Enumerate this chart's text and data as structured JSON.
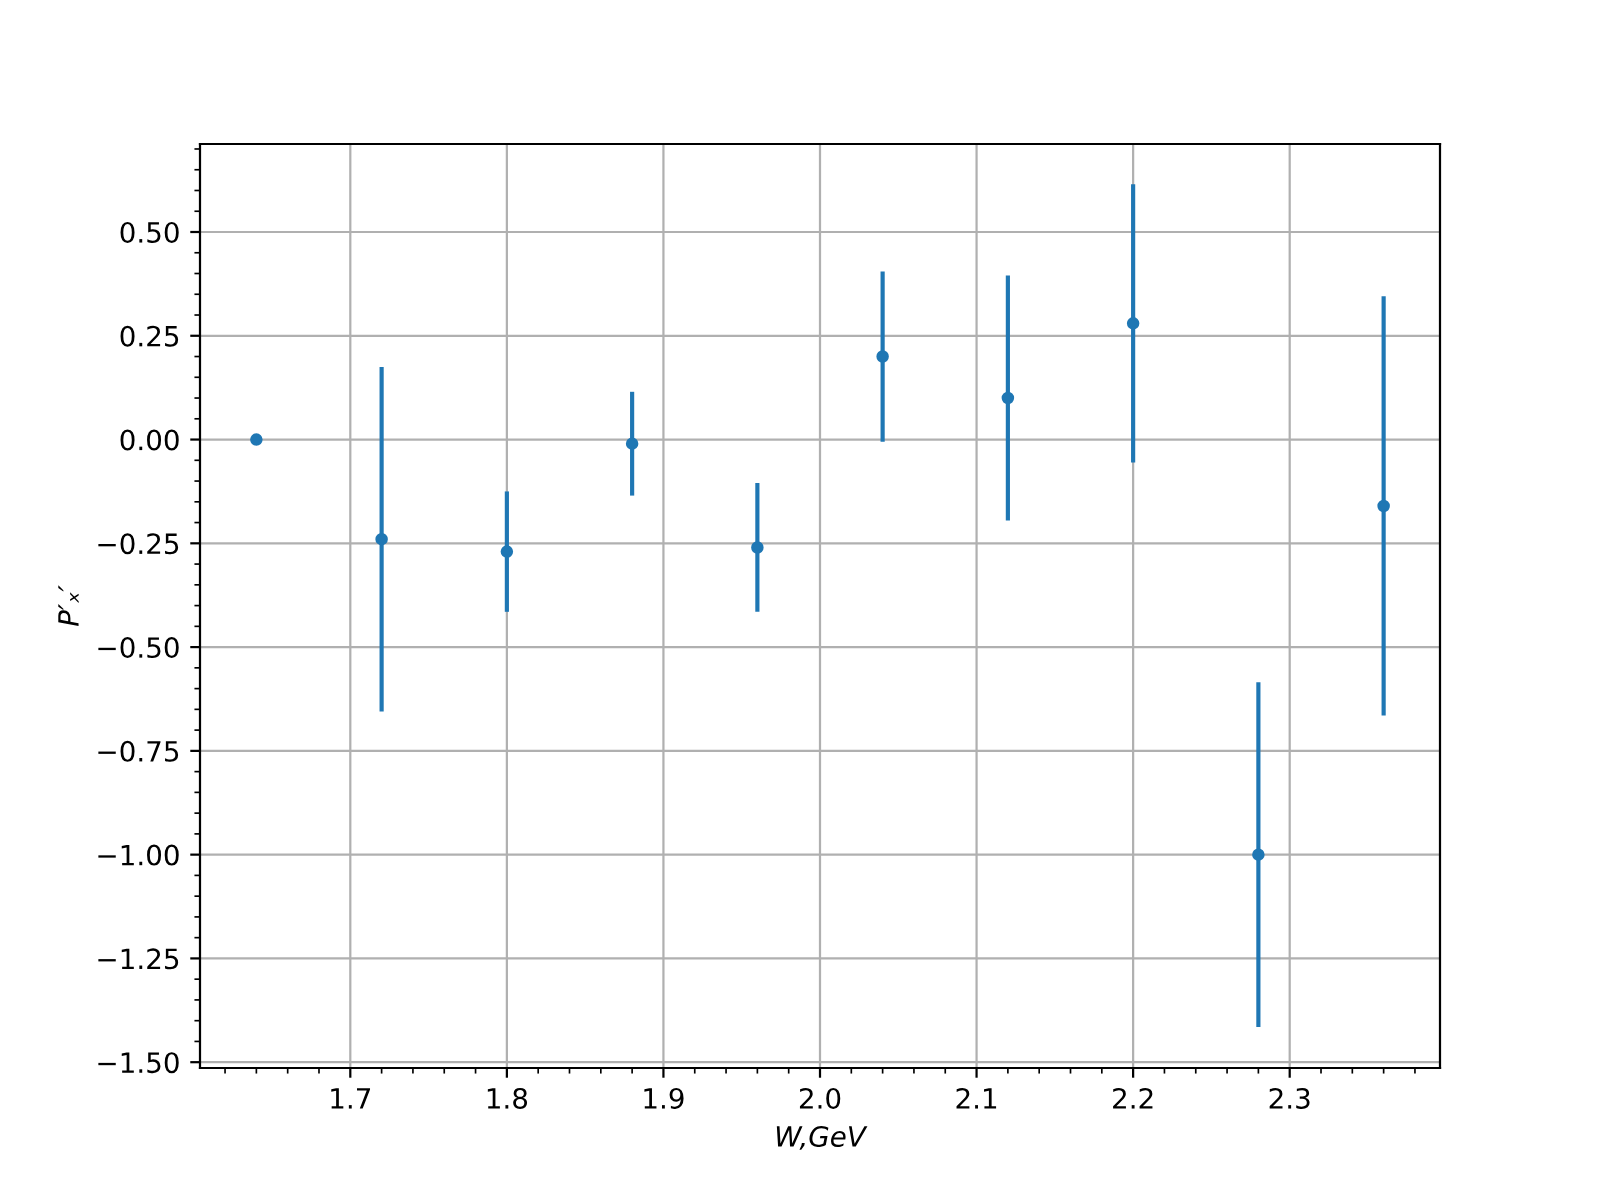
{
  "chart_data": {
    "type": "scatter",
    "xlabel": "W,GeV",
    "ylabel": "P′ₓ′",
    "x": [
      1.64,
      1.72,
      1.8,
      1.88,
      1.96,
      2.04,
      2.12,
      2.2,
      2.28,
      2.36
    ],
    "series": [
      {
        "color": "#1f77b4",
        "values": [
          0.0,
          -0.24,
          -0.27,
          -0.01,
          -0.26,
          0.2,
          0.1,
          0.28,
          -1.0,
          -0.16
        ],
        "errors": [
          null,
          0.41,
          0.14,
          0.12,
          0.15,
          0.2,
          0.29,
          0.33,
          0.41,
          0.5
        ]
      }
    ],
    "marker": "circle",
    "xlim": [
      1.604,
      2.396
    ],
    "xticks": [
      1.7,
      1.8,
      1.9,
      {
        "value": 2.0,
        "label": "2.0"
      },
      2.1,
      2.2,
      2.3
    ],
    "ylim": [
      -1.514,
      0.712
    ],
    "yticks": [
      {
        "value": -1.5,
        "label": "−1.50"
      },
      {
        "value": -1.25,
        "label": "−1.25"
      },
      {
        "value": -1.0,
        "label": "−1.00"
      },
      {
        "value": -0.75,
        "label": "−0.75"
      },
      {
        "value": -0.5,
        "label": "−0.50"
      },
      {
        "value": -0.25,
        "label": "−0.25"
      },
      {
        "value": 0.0,
        "label": "0.00"
      },
      {
        "value": 0.25,
        "label": "0.25"
      },
      {
        "value": 0.5,
        "label": "0.50"
      }
    ],
    "grid": true
  }
}
